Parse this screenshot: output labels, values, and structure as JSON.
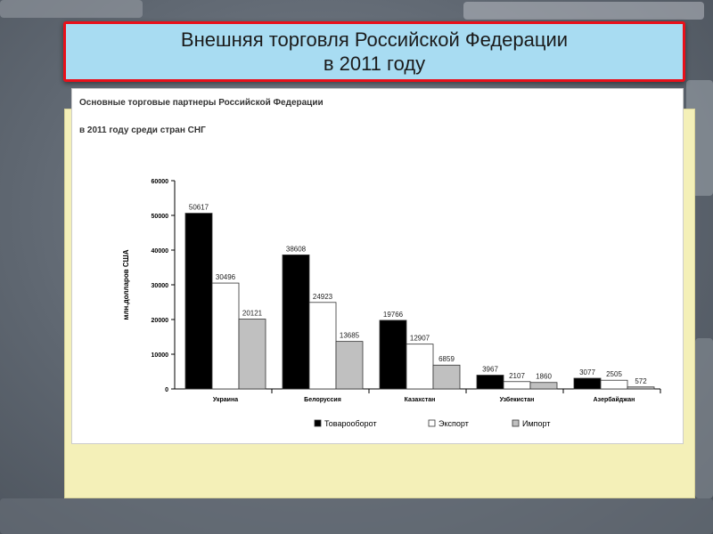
{
  "slide": {
    "title_line1": "Внешняя торговля Российской Федерации",
    "title_line2": "в 2011 году"
  },
  "chart_data": {
    "type": "bar",
    "title": "Основные торговые партнеры Российской Федерации",
    "subtitle": "в 2011 году среди стран СНГ",
    "ylabel": "млн.долларов США",
    "xlabel": "",
    "ylim": [
      0,
      60000
    ],
    "yticks": [
      "0",
      "10000",
      "20000",
      "30000",
      "40000",
      "50000",
      "60000"
    ],
    "categories": [
      "Украина",
      "Белоруссия",
      "Казахстан",
      "Узбекистан",
      "Азербайджан"
    ],
    "series": [
      {
        "name": "Товарооборот",
        "color": "#000000",
        "values": [
          50617,
          38608,
          19766,
          3967,
          3077
        ]
      },
      {
        "name": "Экспорт",
        "color": "#ffffff",
        "values": [
          30496,
          24923,
          12907,
          2107,
          2505
        ]
      },
      {
        "name": "Импорт",
        "color": "#c0c0c0",
        "values": [
          20121,
          13685,
          6859,
          1860,
          572
        ]
      }
    ],
    "legend_position": "bottom",
    "grid": false
  }
}
